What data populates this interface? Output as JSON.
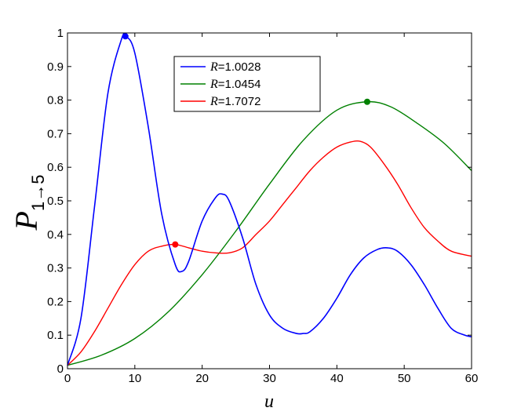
{
  "chart_data": {
    "type": "line",
    "xlabel": "u",
    "ylabel_main": "P",
    "ylabel_sub": "1→5",
    "xlim": [
      0,
      60
    ],
    "ylim": [
      0,
      1
    ],
    "xticks": [
      0,
      10,
      20,
      30,
      40,
      50,
      60
    ],
    "yticks": [
      0,
      0.1,
      0.2,
      0.3,
      0.4,
      0.5,
      0.6,
      0.7,
      0.8,
      0.9,
      1
    ],
    "ytick_labels": [
      "0",
      "0.1",
      "0.2",
      "0.3",
      "0.4",
      "0.5",
      "0.6",
      "0.7",
      "0.8",
      "0.9",
      "1"
    ],
    "grid": false,
    "legend_position": "top-center",
    "series": [
      {
        "name": "R=1.0028",
        "label_var": "R",
        "label_value": "=1.0028",
        "color": "#0000ff",
        "x": [
          0,
          2,
          4,
          6,
          8,
          8.7,
          10,
          12,
          14,
          16,
          17,
          18,
          20,
          22,
          23,
          24,
          26,
          28,
          30,
          32,
          34,
          35,
          36,
          38,
          40,
          42,
          44,
          46,
          47.5,
          49,
          51,
          53,
          55,
          57,
          59,
          60
        ],
        "y": [
          0.01,
          0.15,
          0.48,
          0.82,
          0.98,
          0.99,
          0.94,
          0.72,
          0.46,
          0.31,
          0.29,
          0.32,
          0.44,
          0.51,
          0.52,
          0.5,
          0.39,
          0.25,
          0.16,
          0.12,
          0.105,
          0.105,
          0.11,
          0.15,
          0.21,
          0.28,
          0.33,
          0.355,
          0.36,
          0.35,
          0.31,
          0.25,
          0.18,
          0.12,
          0.1,
          0.095
        ],
        "marker": {
          "x": 8.6,
          "y": 0.99
        }
      },
      {
        "name": "R=1.0454",
        "label_var": "R",
        "label_value": "=1.0454",
        "color": "#008000",
        "x": [
          0,
          5,
          10,
          15,
          20,
          25,
          30,
          35,
          40,
          44.5,
          48,
          52,
          56,
          60
        ],
        "y": [
          0.01,
          0.04,
          0.09,
          0.17,
          0.28,
          0.41,
          0.55,
          0.68,
          0.77,
          0.795,
          0.78,
          0.73,
          0.67,
          0.59
        ],
        "marker": {
          "x": 44.5,
          "y": 0.795
        }
      },
      {
        "name": "R=1.7072",
        "label_var": "R",
        "label_value": "=1.7072",
        "color": "#ff0000",
        "x": [
          0,
          2,
          4,
          6,
          8,
          10,
          12,
          14,
          16,
          18,
          20,
          22,
          24,
          26,
          28,
          30,
          32,
          34,
          36,
          38,
          40,
          42,
          43.5,
          45,
          47,
          49,
          51,
          53,
          55,
          57,
          60
        ],
        "y": [
          0.01,
          0.05,
          0.11,
          0.18,
          0.25,
          0.31,
          0.35,
          0.365,
          0.37,
          0.36,
          0.35,
          0.345,
          0.345,
          0.36,
          0.4,
          0.44,
          0.49,
          0.54,
          0.59,
          0.63,
          0.66,
          0.675,
          0.677,
          0.66,
          0.61,
          0.55,
          0.48,
          0.42,
          0.38,
          0.35,
          0.335
        ],
        "marker": {
          "x": 16,
          "y": 0.37
        }
      }
    ]
  }
}
